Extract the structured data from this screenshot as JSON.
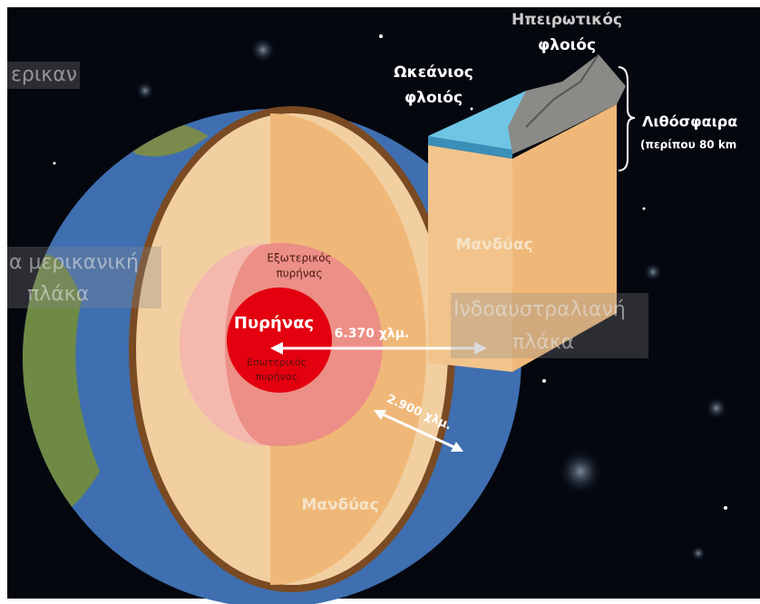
{
  "labels": {
    "continental_crust": [
      "Ηπειρωτικός",
      "φλοιός"
    ],
    "oceanic_crust": [
      "Ωκεάνιος",
      "φλοιός"
    ],
    "lithosphere": "Λιθόσφαιρα",
    "lithosphere_note": "(περίπου 80 km",
    "block_mantle": "Μανδύας",
    "outer_core": [
      "Εξωτερικός",
      "πυρήνας"
    ],
    "core": "Πυρήνας",
    "inner_core": [
      "Εσωτερικός",
      "πυρήνας"
    ],
    "core_radius": "6.370 χλμ.",
    "mantle_depth": "2.900 χλμ.",
    "mantle": "Μανδύας"
  },
  "overlays": {
    "top_left": "ερικαν",
    "left_plate": [
      "α μερικανική",
      "πλάκα"
    ],
    "right_plate": [
      "Ινδοαυστραλιανή",
      "πλάκα"
    ]
  }
}
